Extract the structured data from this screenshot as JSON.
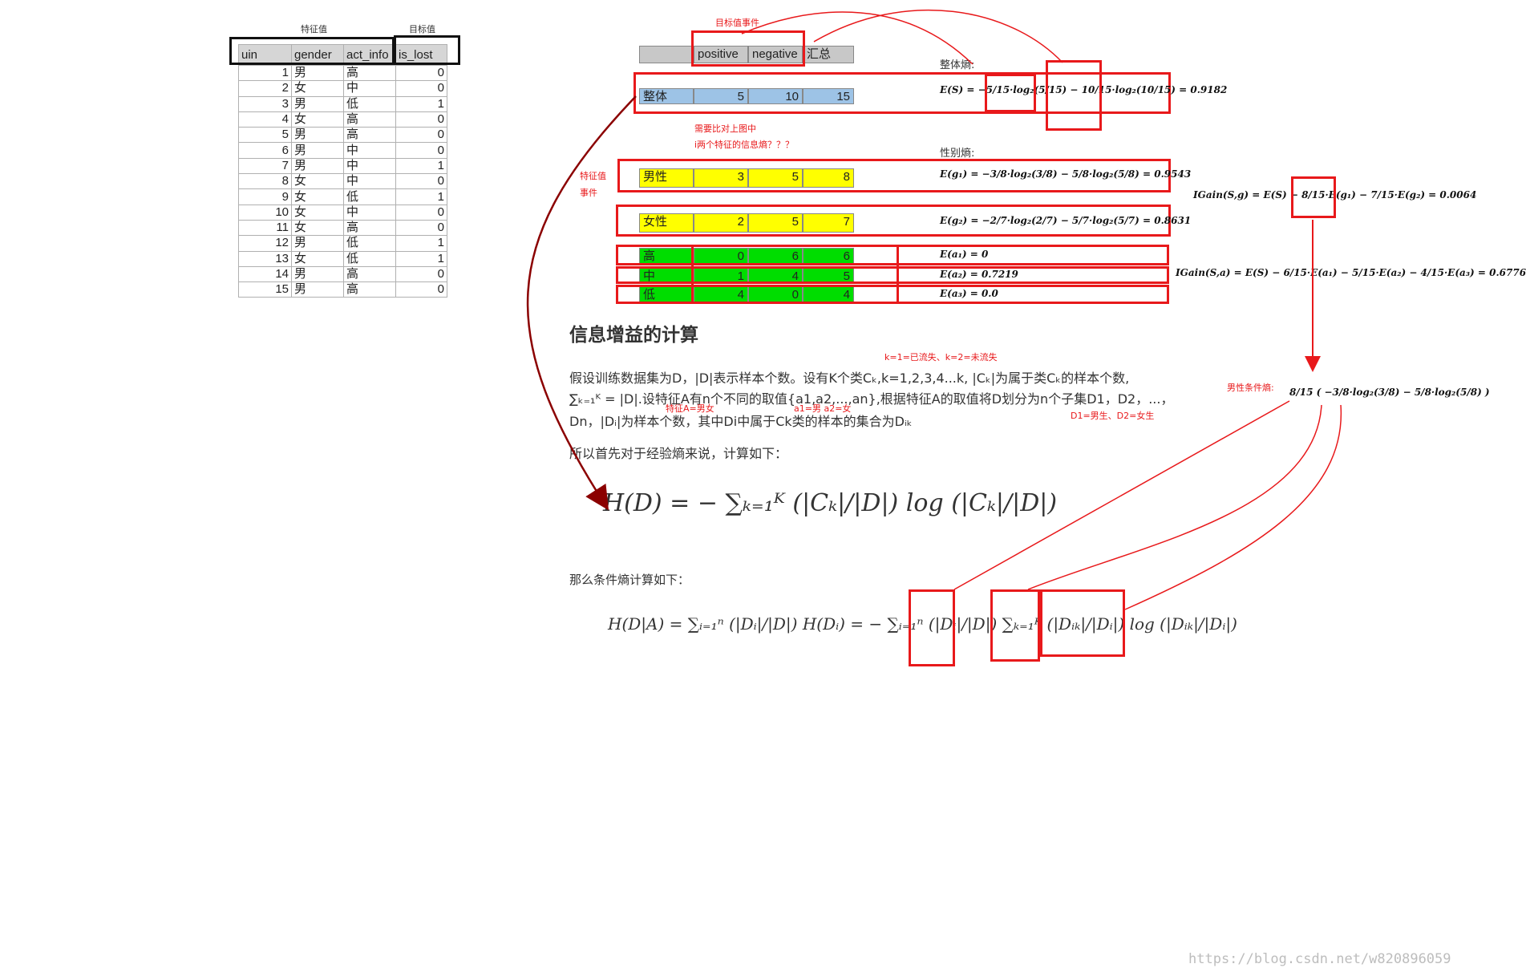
{
  "labels": {
    "feature_values": "特征值",
    "target_value": "目标值",
    "target_event": "目标值事件",
    "overall_entropy": "整体熵:",
    "gender_entropy": "性别熵:",
    "compare_note_1": "需要比对上图中",
    "compare_note_2": "i两个特征的信息熵？？？",
    "feature_event_1": "特征值",
    "feature_event_2": "事件",
    "k_note": "k=1=已流失、k=2=未流失",
    "featureA_note": "特征A=男女",
    "a_note": "a1=男 a2=女",
    "d_note": "D1=男生、D2=女生",
    "male_cond_entropy": "男性条件熵:"
  },
  "data_table": {
    "headers": [
      "uin",
      "gender",
      "act_info",
      "is_lost"
    ],
    "rows": [
      [
        "1",
        "男",
        "高",
        "0"
      ],
      [
        "2",
        "女",
        "中",
        "0"
      ],
      [
        "3",
        "男",
        "低",
        "1"
      ],
      [
        "4",
        "女",
        "高",
        "0"
      ],
      [
        "5",
        "男",
        "高",
        "0"
      ],
      [
        "6",
        "男",
        "中",
        "0"
      ],
      [
        "7",
        "男",
        "中",
        "1"
      ],
      [
        "8",
        "女",
        "中",
        "0"
      ],
      [
        "9",
        "女",
        "低",
        "1"
      ],
      [
        "10",
        "女",
        "中",
        "0"
      ],
      [
        "11",
        "女",
        "高",
        "0"
      ],
      [
        "12",
        "男",
        "低",
        "1"
      ],
      [
        "13",
        "女",
        "低",
        "1"
      ],
      [
        "14",
        "男",
        "高",
        "0"
      ],
      [
        "15",
        "男",
        "高",
        "0"
      ]
    ]
  },
  "summary_table": {
    "headers": [
      "",
      "positive",
      "negative",
      "汇总"
    ],
    "overall": [
      "整体",
      "5",
      "10",
      "15"
    ],
    "gender_rows": [
      [
        "男性",
        "3",
        "5",
        "8"
      ],
      [
        "女性",
        "2",
        "5",
        "7"
      ]
    ],
    "act_rows": [
      [
        "高",
        "0",
        "6",
        "6"
      ],
      [
        "中",
        "1",
        "4",
        "5"
      ],
      [
        "低",
        "4",
        "0",
        "4"
      ]
    ]
  },
  "formulas": {
    "es": "E(S) = −5/15·log₂(5/15) − 10/15·log₂(10/15) = 0.9182",
    "eg1": "E(g₁) = −3/8·log₂(3/8) − 5/8·log₂(5/8) = 0.9543",
    "eg2": "E(g₂) = −2/7·log₂(2/7) − 5/7·log₂(5/7) = 0.8631",
    "ea1": "E(a₁) = 0",
    "ea2": "E(a₂) = 0.7219",
    "ea3": "E(a₃) = 0.0",
    "igain_g": "IGain(S,g) = E(S) − 8/15·E(g₁) − 7/15·E(g₂) = 0.0064",
    "igain_a": "IGain(S,a) = E(S) − 6/15·E(a₁) − 5/15·E(a₂) − 4/15·E(a₃) = 0.6776",
    "male_cond": "8/15 ( −3/8·log₂(3/8) − 5/8·log₂(5/8) )"
  },
  "article": {
    "heading": "信息增益的计算",
    "p1_line1": "假设训练数据集为D，|D|表示样本个数。设有K个类Cₖ,k=1,2,3,4...k, |Cₖ|为属于类Cₖ的样本个数,",
    "p1_line2": "∑ₖ₌₁ᴷ = |D|.设特征A有n个不同的取值{a1,a2,...,an},根据特征A的取值将D划分为n个子集D1，D2，...，",
    "p1_line3": "Dn，|Dᵢ|为样本个数，其中Di中属于Ck类的样本的集合为Dᵢₖ",
    "p2": "所以首先对于经验熵来说，计算如下：",
    "hd_formula": "H(D) = − ∑ₖ₌₁ᴷ (|Cₖ|/|D|) log (|Cₖ|/|D|)",
    "p3": "那么条件熵计算如下：",
    "hda_formula": "H(D|A) = ∑ᵢ₌₁ⁿ (|Dᵢ|/|D|) H(Dᵢ) = − ∑ᵢ₌₁ⁿ (|Dᵢ|/|D|) ∑ₖ₌₁ᴷ (|Dᵢₖ|/|Dᵢ|) log (|Dᵢₖ|/|Dᵢ|)"
  },
  "watermark": "https://blog.csdn.net/w820896059",
  "colors": {
    "annotation": "#e8191b",
    "overall_row": "#9dc3e6",
    "gender_rows": "#ffff00",
    "act_rows": "#00dd00",
    "header_row": "#c8c8c8",
    "arrow_dark": "#8b0000"
  }
}
